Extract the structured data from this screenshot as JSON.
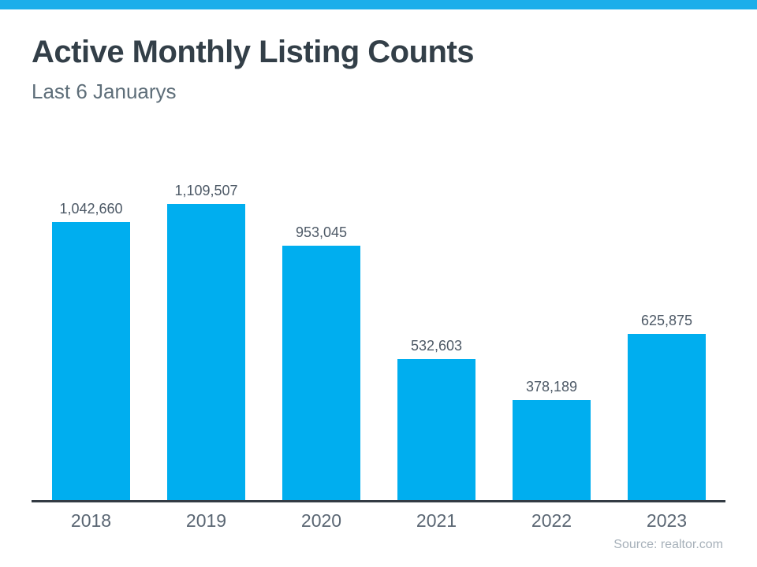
{
  "page": {
    "title": "Active Monthly Listing Counts",
    "subtitle": "Last 6 Januarys",
    "source": "Source: realtor.com"
  },
  "colors": {
    "accent_stripe": "#1CAEEA",
    "bar_fill": "#00AEEF",
    "title_text": "#333F48",
    "subtitle_text": "#5E6E79",
    "value_label_text": "#4D5966",
    "year_label_text": "#5A6673",
    "axis_line": "#333B43",
    "source_text": "#A6B0B9"
  },
  "chart_data": {
    "type": "bar",
    "title": "Active Monthly Listing Counts",
    "subtitle": "Last 6 Januarys",
    "categories": [
      "2018",
      "2019",
      "2020",
      "2021",
      "2022",
      "2023"
    ],
    "values": [
      1042660,
      1109507,
      953045,
      532603,
      378189,
      625875
    ],
    "value_labels": [
      "1,042,660",
      "1,109,507",
      "953,045",
      "532,603",
      "378,189",
      "625,875"
    ],
    "xlabel": "",
    "ylabel": "",
    "ylim": [
      0,
      1150000
    ],
    "grid": false,
    "legend": false,
    "bar_color": "#00AEEF",
    "source": "Source: realtor.com"
  }
}
